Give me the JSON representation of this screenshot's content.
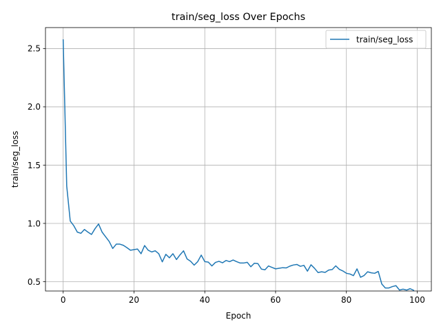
{
  "chart_data": {
    "type": "line",
    "title": "train/seg_loss Over Epochs",
    "xlabel": "Epoch",
    "ylabel": "train/seg_loss",
    "xlim": [
      -5,
      104
    ],
    "ylim": [
      0.42,
      2.68
    ],
    "xticks": [
      0,
      20,
      40,
      60,
      80,
      100
    ],
    "yticks": [
      0.5,
      1.0,
      1.5,
      2.0,
      2.5
    ],
    "xtick_labels": [
      "0",
      "20",
      "40",
      "60",
      "80",
      "100"
    ],
    "ytick_labels": [
      "0.5",
      "1.0",
      "1.5",
      "2.0",
      "2.5"
    ],
    "grid": true,
    "legend_position": "upper right",
    "series": [
      {
        "name": "train/seg_loss",
        "color": "#1f77b4",
        "x": [
          0,
          1,
          2,
          3,
          4,
          5,
          6,
          7,
          8,
          9,
          10,
          11,
          12,
          13,
          14,
          15,
          16,
          17,
          18,
          19,
          20,
          21,
          22,
          23,
          24,
          25,
          26,
          27,
          28,
          29,
          30,
          31,
          32,
          33,
          34,
          35,
          36,
          37,
          38,
          39,
          40,
          41,
          42,
          43,
          44,
          45,
          46,
          47,
          48,
          49,
          50,
          51,
          52,
          53,
          54,
          55,
          56,
          57,
          58,
          59,
          60,
          61,
          62,
          63,
          64,
          65,
          66,
          67,
          68,
          69,
          70,
          71,
          72,
          73,
          74,
          75,
          76,
          77,
          78,
          79,
          80,
          81,
          82,
          83,
          84,
          85,
          86,
          87,
          88,
          89,
          90,
          91,
          92,
          93,
          94,
          95,
          96,
          97,
          98,
          99
        ],
        "y": [
          2.575,
          1.32,
          1.02,
          0.98,
          0.925,
          0.915,
          0.948,
          0.925,
          0.905,
          0.955,
          0.995,
          0.925,
          0.885,
          0.845,
          0.785,
          0.822,
          0.822,
          0.812,
          0.792,
          0.77,
          0.775,
          0.78,
          0.74,
          0.81,
          0.77,
          0.755,
          0.765,
          0.74,
          0.67,
          0.735,
          0.705,
          0.74,
          0.69,
          0.73,
          0.765,
          0.695,
          0.675,
          0.642,
          0.672,
          0.728,
          0.672,
          0.668,
          0.635,
          0.665,
          0.675,
          0.662,
          0.682,
          0.672,
          0.686,
          0.672,
          0.66,
          0.66,
          0.666,
          0.628,
          0.658,
          0.655,
          0.608,
          0.602,
          0.635,
          0.622,
          0.61,
          0.615,
          0.62,
          0.618,
          0.633,
          0.643,
          0.648,
          0.632,
          0.64,
          0.59,
          0.645,
          0.615,
          0.578,
          0.585,
          0.58,
          0.6,
          0.604,
          0.636,
          0.606,
          0.592,
          0.572,
          0.566,
          0.552,
          0.61,
          0.538,
          0.553,
          0.585,
          0.576,
          0.572,
          0.588,
          0.48,
          0.446,
          0.446,
          0.458,
          0.466,
          0.428,
          0.436,
          0.428,
          0.44,
          0.426
        ]
      }
    ]
  }
}
